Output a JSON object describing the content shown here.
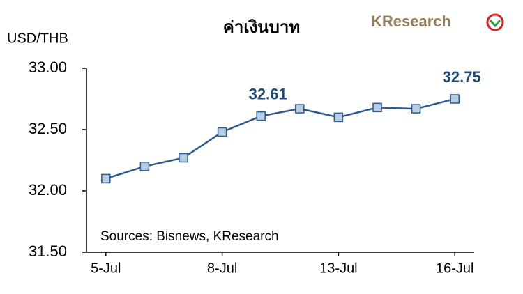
{
  "chart_data": {
    "type": "line",
    "title": "ค่าเงินบาท",
    "y_label": "USD/THB",
    "source": "Sources: Bisnews, KResearch",
    "logo": "KResearch",
    "categories": [
      "5-Jul",
      null,
      null,
      "8-Jul",
      null,
      null,
      "13-Jul",
      null,
      null,
      "16-Jul"
    ],
    "values": [
      32.1,
      32.2,
      32.27,
      32.48,
      32.61,
      32.67,
      32.6,
      32.68,
      32.67,
      32.75
    ],
    "value_labels": [
      null,
      null,
      null,
      null,
      "32.61",
      null,
      null,
      null,
      null,
      "32.75"
    ],
    "color": "#2f5a8c",
    "marker_color": "#b8cce4",
    "ylim": [
      31.5,
      33.0
    ],
    "yticks": [
      {
        "value": 31.5,
        "label": "31.50"
      },
      {
        "value": 32.0,
        "label": "32.00"
      },
      {
        "value": 32.5,
        "label": "32.50"
      },
      {
        "value": 33.0,
        "label": "33.00"
      }
    ],
    "grid": false
  }
}
